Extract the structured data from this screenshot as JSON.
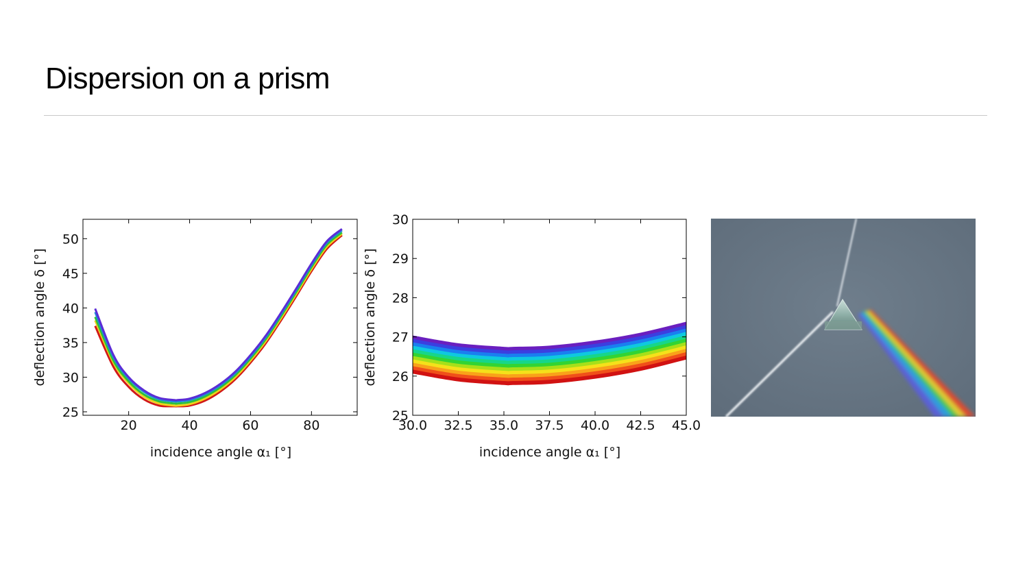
{
  "slide": {
    "title": "Dispersion on a prism"
  },
  "chart_data": [
    {
      "type": "line",
      "xlabel": "incidence angle α₁ [°]",
      "ylabel": "deflection angle δ [°]",
      "xlim": [
        5,
        95
      ],
      "ylim": [
        24.5,
        52.8
      ],
      "xticks": [
        20,
        40,
        60,
        80
      ],
      "yticks": [
        25,
        30,
        35,
        40,
        45,
        50
      ],
      "grid": false,
      "x": [
        9,
        15,
        20,
        25,
        30,
        35,
        36,
        40,
        45,
        50,
        55,
        60,
        65,
        70,
        75,
        80,
        85,
        90
      ],
      "series": [
        {
          "color": "#5b2cd6",
          "values": [
            39.9,
            33.2,
            30.0,
            28.1,
            27.0,
            26.7,
            26.7,
            26.9,
            27.7,
            29.0,
            30.8,
            33.2,
            36.0,
            39.3,
            42.8,
            46.4,
            49.6,
            51.4
          ]
        },
        {
          "color": "#1f8ad8",
          "values": [
            39.4,
            32.9,
            29.8,
            27.9,
            26.8,
            26.5,
            26.5,
            26.7,
            27.5,
            28.8,
            30.6,
            33.0,
            35.8,
            39.1,
            42.6,
            46.2,
            49.4,
            51.2
          ]
        },
        {
          "color": "#2cc23a",
          "values": [
            38.7,
            32.4,
            29.4,
            27.5,
            26.5,
            26.2,
            26.2,
            26.4,
            27.2,
            28.5,
            30.3,
            32.7,
            35.5,
            38.8,
            42.3,
            45.9,
            49.1,
            50.9
          ]
        },
        {
          "color": "#f0d11a",
          "values": [
            38.2,
            32.1,
            29.1,
            27.2,
            26.2,
            25.9,
            25.9,
            26.1,
            26.9,
            28.2,
            30.0,
            32.4,
            35.2,
            38.5,
            42.0,
            45.6,
            48.8,
            50.7
          ]
        },
        {
          "color": "#d11818",
          "values": [
            37.4,
            31.5,
            28.6,
            26.8,
            25.9,
            25.8,
            25.8,
            25.9,
            26.6,
            27.9,
            29.7,
            32.1,
            34.9,
            38.2,
            41.7,
            45.3,
            48.5,
            50.5
          ]
        }
      ]
    },
    {
      "type": "area",
      "xlabel": "incidence angle α₁ [°]",
      "ylabel": "deflection angle δ [°]",
      "xlim": [
        30.0,
        45.0
      ],
      "ylim": [
        25,
        30
      ],
      "xticks": [
        "30.0",
        "32.5",
        "35.0",
        "37.5",
        "40.0",
        "42.5",
        "45.0"
      ],
      "yticks": [
        25,
        26,
        27,
        28,
        29,
        30
      ],
      "grid": false,
      "x": [
        30.0,
        32.5,
        35.0,
        35.5,
        37.5,
        40.0,
        42.5,
        45.0
      ],
      "upper": [
        27.03,
        26.83,
        26.74,
        26.74,
        26.77,
        26.9,
        27.1,
        27.38
      ],
      "lower": [
        26.07,
        25.87,
        25.78,
        25.78,
        25.81,
        25.94,
        26.14,
        26.43
      ],
      "colors": [
        "#6a1fbf",
        "#3b3fe0",
        "#1a7ff0",
        "#0fc8e0",
        "#17d68a",
        "#33d433",
        "#a6e01a",
        "#f5e11a",
        "#f9a21a",
        "#f0501a",
        "#d11212"
      ]
    }
  ],
  "photo": {
    "subject": "prism-dispersion-photo",
    "colors": {
      "background": "#667583",
      "beam": "#f2f5f8"
    }
  }
}
